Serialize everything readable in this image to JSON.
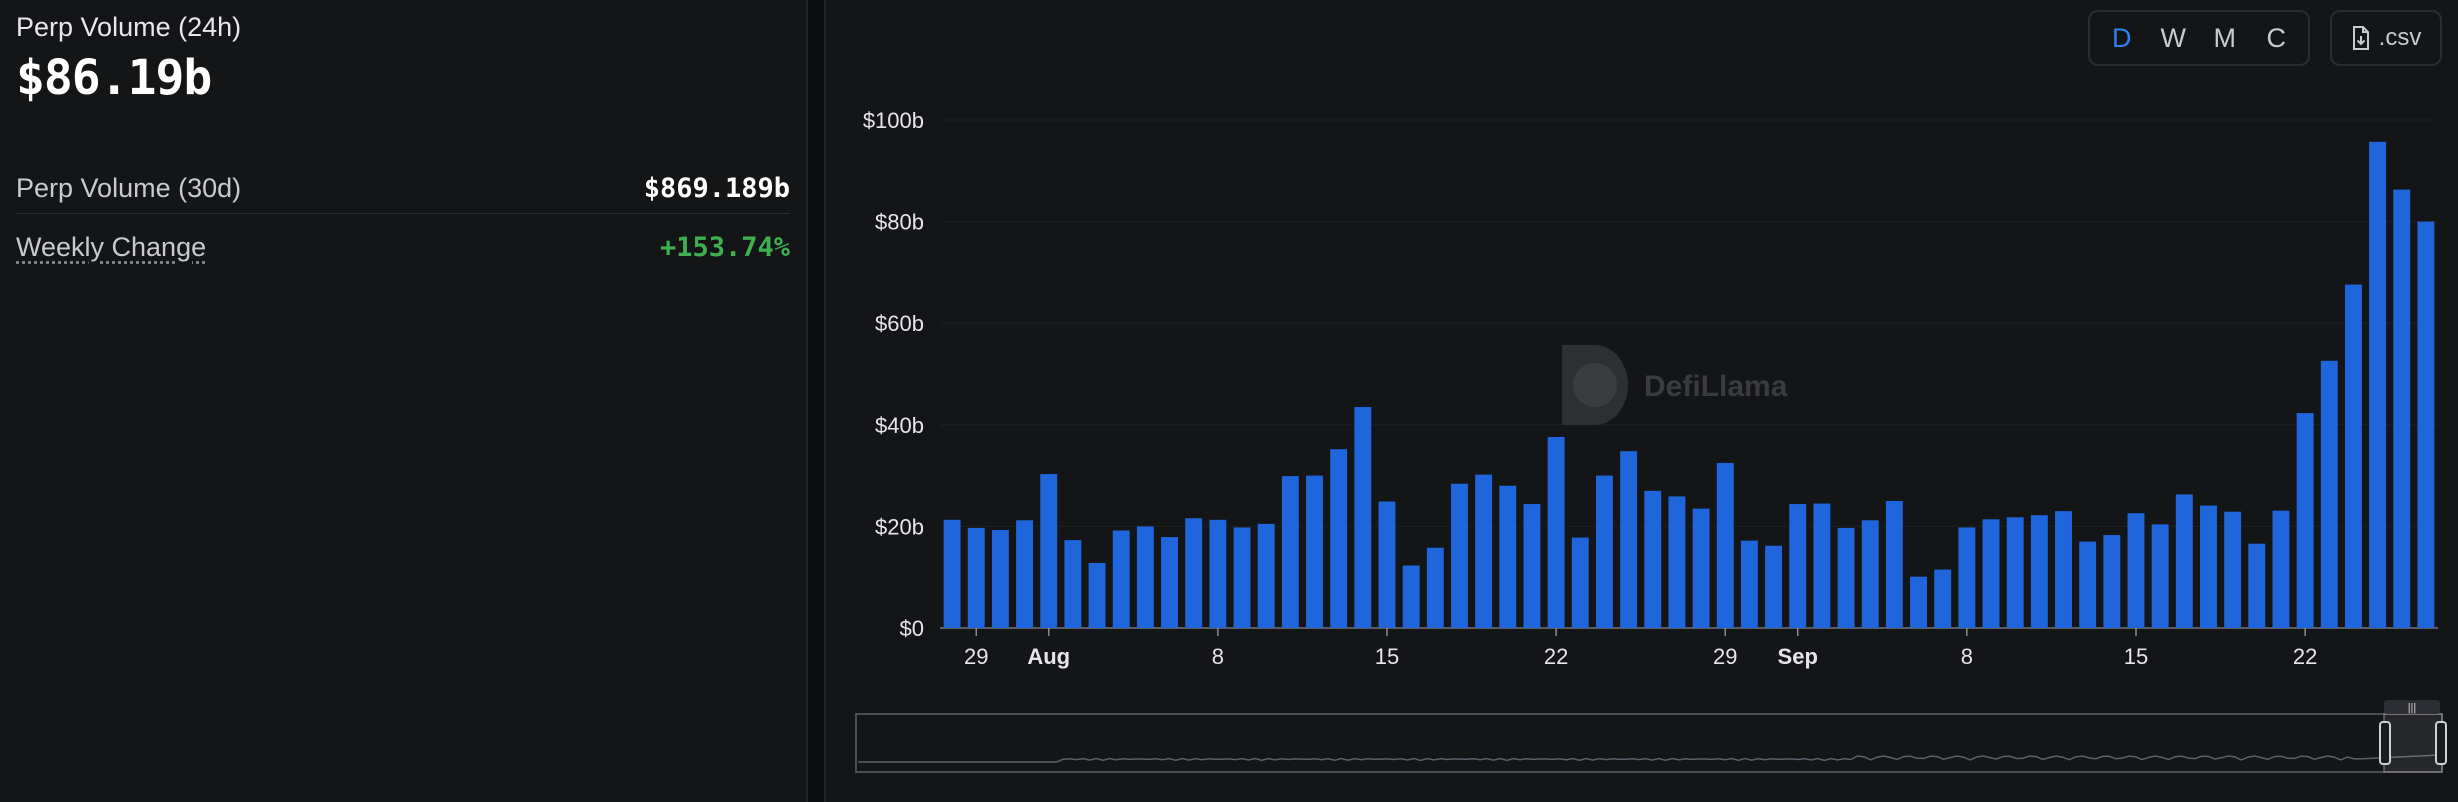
{
  "stats": {
    "perp_volume_24h_label": "Perp Volume (24h)",
    "perp_volume_24h_value": "$86.19b",
    "perp_volume_30d_label": "Perp Volume (30d)",
    "perp_volume_30d_value": "$869.189b",
    "weekly_change_label": "Weekly Change",
    "weekly_change_value": "+153.74%"
  },
  "controls": {
    "periods": [
      "D",
      "W",
      "M",
      "C"
    ],
    "active_period": "D",
    "csv_label": ".csv"
  },
  "watermark": "DefiLlama",
  "colors": {
    "bar": "#1f66dc",
    "positive": "#3fb04f",
    "accent": "#2f80ed"
  },
  "chart_data": {
    "type": "bar",
    "title": "",
    "xlabel": "",
    "ylabel": "",
    "ylim": [
      0,
      100
    ],
    "y_ticks": [
      "$0",
      "$20b",
      "$40b",
      "$60b",
      "$80b",
      "$100b"
    ],
    "y_tick_values": [
      0,
      20,
      40,
      60,
      80,
      100
    ],
    "x_ticks": [
      {
        "index": 1,
        "label": "29",
        "bold": false
      },
      {
        "index": 4,
        "label": "Aug",
        "bold": true
      },
      {
        "index": 11,
        "label": "8",
        "bold": false
      },
      {
        "index": 18,
        "label": "15",
        "bold": false
      },
      {
        "index": 25,
        "label": "22",
        "bold": false
      },
      {
        "index": 32,
        "label": "29",
        "bold": false
      },
      {
        "index": 35,
        "label": "Sep",
        "bold": true
      },
      {
        "index": 42,
        "label": "8",
        "bold": false
      },
      {
        "index": 49,
        "label": "15",
        "bold": false
      },
      {
        "index": 56,
        "label": "22",
        "bold": false
      }
    ],
    "series": [
      {
        "name": "Perp Volume",
        "values": [
          21.3,
          19.7,
          19.3,
          21.2,
          30.3,
          17.3,
          12.8,
          19.2,
          20.0,
          17.9,
          21.6,
          21.3,
          19.8,
          20.5,
          29.9,
          30.0,
          35.2,
          43.5,
          24.9,
          12.3,
          15.8,
          28.4,
          30.2,
          28.0,
          24.4,
          37.6,
          17.8,
          30.0,
          34.8,
          27.0,
          25.9,
          23.5,
          32.5,
          17.2,
          16.2,
          24.4,
          24.5,
          19.7,
          21.2,
          25.0,
          10.1,
          11.5,
          19.8,
          21.4,
          21.8,
          22.2,
          23.0,
          17.0,
          18.3,
          22.6,
          20.4,
          26.3,
          24.1,
          22.9,
          16.6,
          23.1,
          42.3,
          52.6,
          67.6,
          95.7,
          86.3,
          80.0
        ]
      }
    ]
  }
}
